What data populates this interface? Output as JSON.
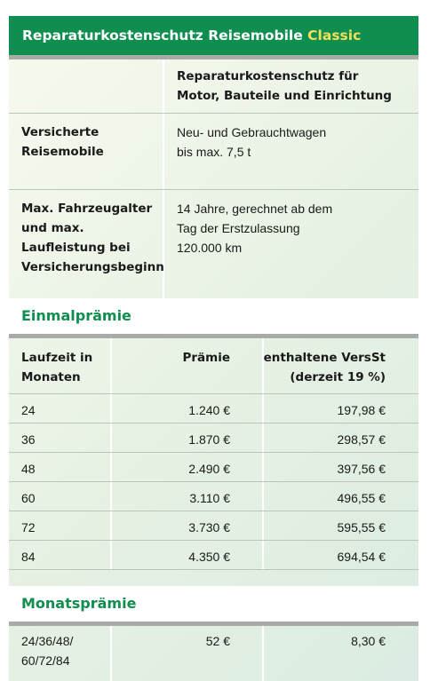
{
  "title": {
    "main": "Reparaturkostenschutz Reisemobile",
    "accent": "Classic"
  },
  "info": {
    "header_line1": "Reparaturkostenschutz für",
    "header_line2": "Motor, Bauteile und Einrichtung",
    "rows": [
      {
        "label_lines": [
          "Versicherte",
          "Reisemobile"
        ],
        "value_lines": [
          "Neu- und Gebrauchtwagen",
          "bis max. 7,5 t"
        ]
      },
      {
        "label_lines": [
          "Max. Fahrzeugalter",
          "und max.",
          "Laufleistung bei",
          "Versicherungsbeginn"
        ],
        "value_lines": [
          "14 Jahre, gerechnet ab dem",
          "Tag der Erstzulassung",
          "120.000 km"
        ]
      }
    ]
  },
  "einmal": {
    "heading": "Einmalprämie",
    "col1_line1": "Laufzeit in",
    "col1_line2": "Monaten",
    "col2": "Prämie",
    "col3_line1": "enthaltene VersSt",
    "col3_line2": "(derzeit 19 %)",
    "rows": [
      [
        "24",
        "1.240 €",
        "197,98 €"
      ],
      [
        "36",
        "1.870 €",
        "298,57 €"
      ],
      [
        "48",
        "2.490 €",
        "397,56 €"
      ],
      [
        "60",
        "3.110 €",
        "496,55 €"
      ],
      [
        "72",
        "3.730 €",
        "595,55 €"
      ],
      [
        "84",
        "4.350 €",
        "694,54 €"
      ]
    ]
  },
  "monat": {
    "heading": "Monatsprämie",
    "laufzeit_line1": "24/36/48/",
    "laufzeit_line2": "60/72/84",
    "praemie": "52 €",
    "versst": "8,30 €"
  }
}
